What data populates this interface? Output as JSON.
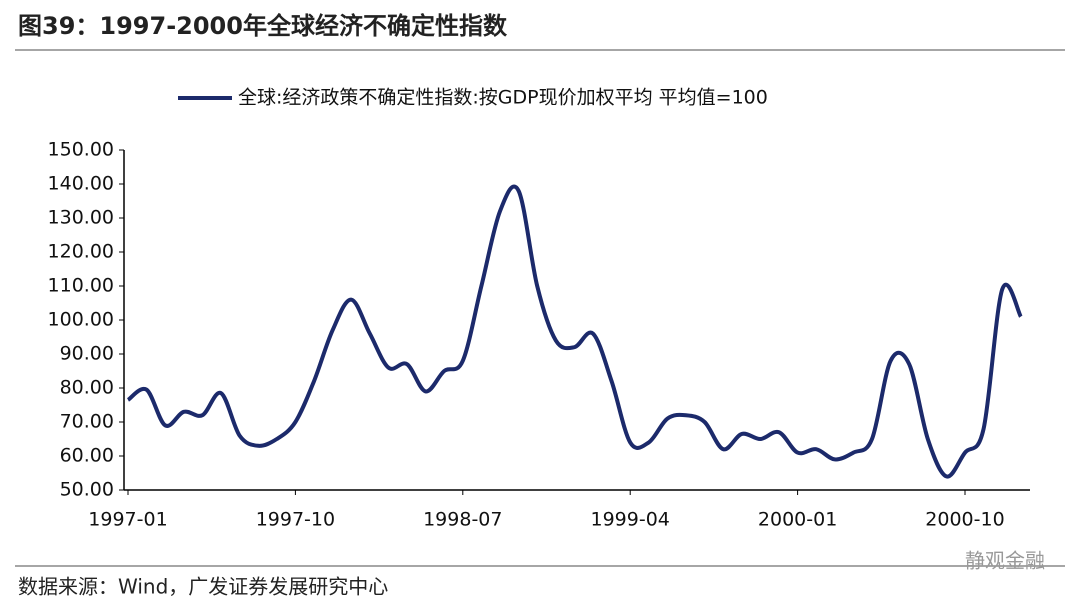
{
  "chart_data": {
    "type": "line",
    "title": "图39：1997-2000年全球经济不确定性指数",
    "source": "数据来源：Wind，广发证券发展研究中心",
    "watermark": "静观金融",
    "categories": [
      "1997-01",
      null,
      null,
      null,
      null,
      null,
      null,
      null,
      null,
      "1997-10",
      null,
      null,
      null,
      null,
      null,
      null,
      null,
      null,
      "1998-07",
      null,
      null,
      null,
      null,
      null,
      null,
      null,
      null,
      "1999-04",
      null,
      null,
      null,
      null,
      null,
      null,
      null,
      null,
      "2000-01",
      null,
      null,
      null,
      null,
      null,
      null,
      null,
      null,
      "2000-10",
      null,
      null,
      null
    ],
    "series": [
      {
        "name": "全球:经济政策不确定性指数:按GDP现价加权平均 平均值=100",
        "color": "#1c2a6b",
        "values": [
          76.5,
          79.5,
          69,
          73,
          72,
          78.5,
          66,
          63,
          65,
          70,
          82,
          97,
          106,
          96,
          86,
          87,
          79,
          85,
          88,
          110,
          132,
          138,
          110,
          94,
          92,
          96,
          82,
          64,
          64,
          71,
          72,
          70,
          62,
          66.5,
          65,
          67,
          61,
          62,
          59,
          61,
          65,
          88,
          87,
          65,
          54,
          61,
          68,
          109,
          101
        ]
      }
    ],
    "ylim": [
      50,
      150
    ],
    "yticks": [
      {
        "value": 50,
        "label": "50.00"
      },
      {
        "value": 60,
        "label": "60.00"
      },
      {
        "value": 70,
        "label": "70.00"
      },
      {
        "value": 80,
        "label": "80.00"
      },
      {
        "value": 90,
        "label": "90.00"
      },
      {
        "value": 100,
        "label": "100.00"
      },
      {
        "value": 110,
        "label": "110.00"
      },
      {
        "value": 120,
        "label": "120.00"
      },
      {
        "value": 130,
        "label": "130.00"
      },
      {
        "value": 140,
        "label": "140.00"
      },
      {
        "value": 150,
        "label": "150.00"
      }
    ],
    "grid": false
  }
}
